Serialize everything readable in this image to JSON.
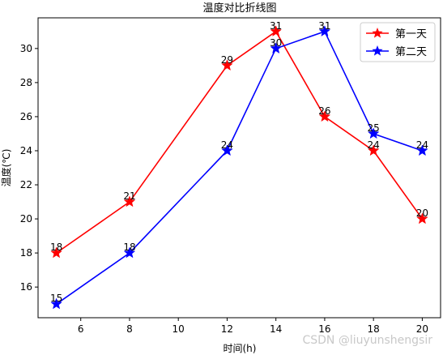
{
  "chart_data": {
    "type": "line",
    "title": "温度对比折线图",
    "xlabel": "时间(h)",
    "ylabel": "温度(℃)",
    "x": [
      5,
      8,
      12,
      14,
      16,
      18,
      20
    ],
    "xticks": [
      6,
      8,
      10,
      12,
      14,
      16,
      18,
      20
    ],
    "yticks": [
      16,
      18,
      20,
      22,
      24,
      26,
      28,
      30
    ],
    "xlim": [
      4.25,
      20.75
    ],
    "ylim": [
      14.2,
      31.8
    ],
    "grid": false,
    "legend_position": "top-right",
    "marker": "star",
    "series": [
      {
        "name": "第一天",
        "color": "#ff0000",
        "values": [
          18,
          21,
          29,
          31,
          26,
          24,
          20
        ]
      },
      {
        "name": "第二天",
        "color": "#0000ff",
        "values": [
          15,
          18,
          24,
          30,
          31,
          25,
          24
        ]
      }
    ]
  },
  "watermark": "CSDN @liuyunshengsir"
}
